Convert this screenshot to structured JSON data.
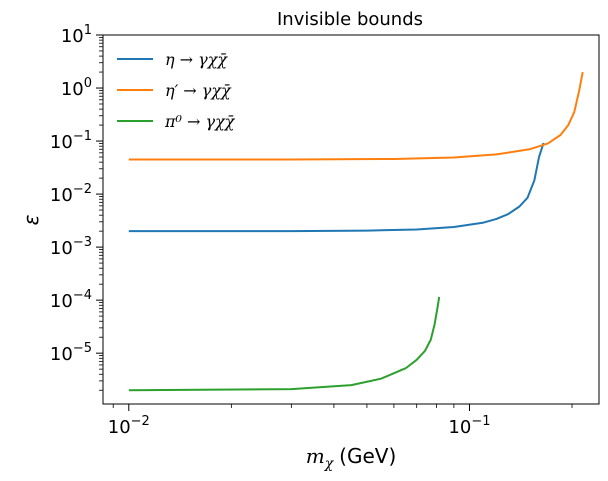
{
  "chart_data": {
    "type": "line",
    "title": "Invisible bounds",
    "xlabel": "m_χ (GeV)",
    "xlabel_main": "m",
    "xlabel_sub": "χ",
    "xlabel_unit": "(GeV)",
    "ylabel": "ε",
    "xscale": "log",
    "yscale": "log",
    "xlim": [
      0.0084,
      0.24
    ],
    "ylim": [
      1.1e-06,
      10
    ],
    "xticks": [
      {
        "value": 0.01,
        "base": "10",
        "exp": "−2"
      },
      {
        "value": 0.1,
        "base": "10",
        "exp": "−1"
      }
    ],
    "yticks": [
      {
        "value": 1e-05,
        "base": "10",
        "exp": "−5"
      },
      {
        "value": 0.0001,
        "base": "10",
        "exp": "−4"
      },
      {
        "value": 0.001,
        "base": "10",
        "exp": "−3"
      },
      {
        "value": 0.01,
        "base": "10",
        "exp": "−2"
      },
      {
        "value": 0.1,
        "base": "10",
        "exp": "−1"
      },
      {
        "value": 1,
        "base": "10",
        "exp": "0"
      },
      {
        "value": 10,
        "base": "10",
        "exp": "1"
      }
    ],
    "legend_position": "top-left",
    "series": [
      {
        "name": "η → γχχ̄",
        "color": "#1f77b4",
        "x": [
          0.01,
          0.03,
          0.05,
          0.07,
          0.09,
          0.11,
          0.12,
          0.13,
          0.14,
          0.148,
          0.155,
          0.16,
          0.165
        ],
        "y": [
          0.002,
          0.002,
          0.00205,
          0.00215,
          0.0024,
          0.0029,
          0.0034,
          0.0042,
          0.0058,
          0.0085,
          0.018,
          0.05,
          0.092
        ]
      },
      {
        "name": "η′ → γχχ̄",
        "color": "#ff7f0e",
        "x": [
          0.01,
          0.03,
          0.06,
          0.09,
          0.12,
          0.15,
          0.17,
          0.185,
          0.195,
          0.203,
          0.21,
          0.215
        ],
        "y": [
          0.045,
          0.045,
          0.046,
          0.049,
          0.056,
          0.07,
          0.09,
          0.13,
          0.2,
          0.35,
          0.9,
          2.0
        ]
      },
      {
        "name": "π⁰ → γχχ̄",
        "color": "#2ca02c",
        "x": [
          0.01,
          0.03,
          0.045,
          0.055,
          0.065,
          0.07,
          0.074,
          0.077,
          0.079,
          0.0805,
          0.0815
        ],
        "y": [
          2e-06,
          2.1e-06,
          2.5e-06,
          3.3e-06,
          5.2e-06,
          7.5e-06,
          1.1e-05,
          1.8e-05,
          3.5e-05,
          7e-05,
          0.000115
        ]
      }
    ]
  }
}
